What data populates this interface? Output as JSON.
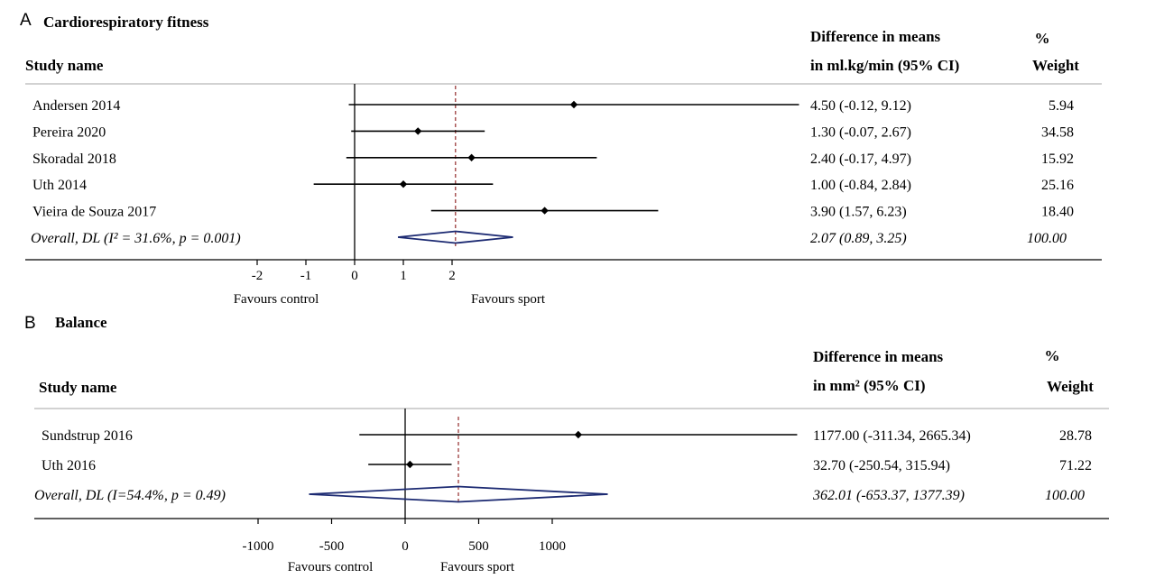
{
  "chart_data": [
    {
      "type": "forest",
      "panel_letter": "A",
      "title": "Cardiorespiratory fitness",
      "study_header": "Study name",
      "effect_header": [
        "Difference in means",
        "in ml.kg/min (95% CI)"
      ],
      "weight_header": [
        "%",
        "Weight"
      ],
      "studies": [
        {
          "name": "Andersen 2014",
          "estimate": 4.5,
          "lower": -0.12,
          "upper": 9.12,
          "ci_text": "4.50 (-0.12, 9.12)",
          "weight": "5.94"
        },
        {
          "name": "Pereira 2020",
          "estimate": 1.3,
          "lower": -0.07,
          "upper": 2.67,
          "ci_text": "1.30 (-0.07, 2.67)",
          "weight": "34.58"
        },
        {
          "name": "Skoradal 2018",
          "estimate": 2.4,
          "lower": -0.17,
          "upper": 4.97,
          "ci_text": "2.40 (-0.17, 4.97)",
          "weight": "15.92"
        },
        {
          "name": "Uth 2014",
          "estimate": 1.0,
          "lower": -0.84,
          "upper": 2.84,
          "ci_text": "1.00 (-0.84, 2.84)",
          "weight": "25.16"
        },
        {
          "name": "Vieira de Souza 2017",
          "estimate": 3.9,
          "lower": 1.57,
          "upper": 6.23,
          "ci_text": "3.90 (1.57, 6.23)",
          "weight": "18.40"
        }
      ],
      "overall": {
        "label": "Overall, DL (I² = 31.6%, p = 0.001)",
        "estimate": 2.07,
        "lower": 0.89,
        "upper": 3.25,
        "ci_text": "2.07 (0.89, 3.25)",
        "weight": "100.00"
      },
      "x_ticks": [
        -2,
        -1,
        0,
        1,
        2
      ],
      "x_tick_labels": [
        "-2",
        "-1",
        "0",
        "1",
        "2"
      ],
      "favours_left": "Favours control",
      "favours_right": "Favours sport"
    },
    {
      "type": "forest",
      "panel_letter": "B",
      "title": "Balance",
      "study_header": "Study name",
      "effect_header": [
        "Difference in means",
        "in mm² (95% CI)"
      ],
      "weight_header": [
        "%",
        "Weight"
      ],
      "studies": [
        {
          "name": "Sundstrup 2016",
          "estimate": 1177.0,
          "lower": -311.34,
          "upper": 2665.34,
          "ci_text": "1177.00 (-311.34, 2665.34)",
          "weight": "28.78"
        },
        {
          "name": "Uth 2016",
          "estimate": 32.7,
          "lower": -250.54,
          "upper": 315.94,
          "ci_text": "32.70 (-250.54, 315.94)",
          "weight": "71.22"
        }
      ],
      "overall": {
        "label": "Overall, DL (I=54.4%, p = 0.49)",
        "estimate": 362.01,
        "lower": -653.37,
        "upper": 1377.39,
        "ci_text": "362.01 (-653.37, 1377.39)",
        "weight": "100.00"
      },
      "x_ticks": [
        -1000,
        -500,
        0,
        500,
        1000
      ],
      "x_tick_labels": [
        "-1000",
        "-500",
        "0",
        "500",
        "1000"
      ],
      "favours_left": "Favours control",
      "favours_right": "Favours sport"
    }
  ]
}
